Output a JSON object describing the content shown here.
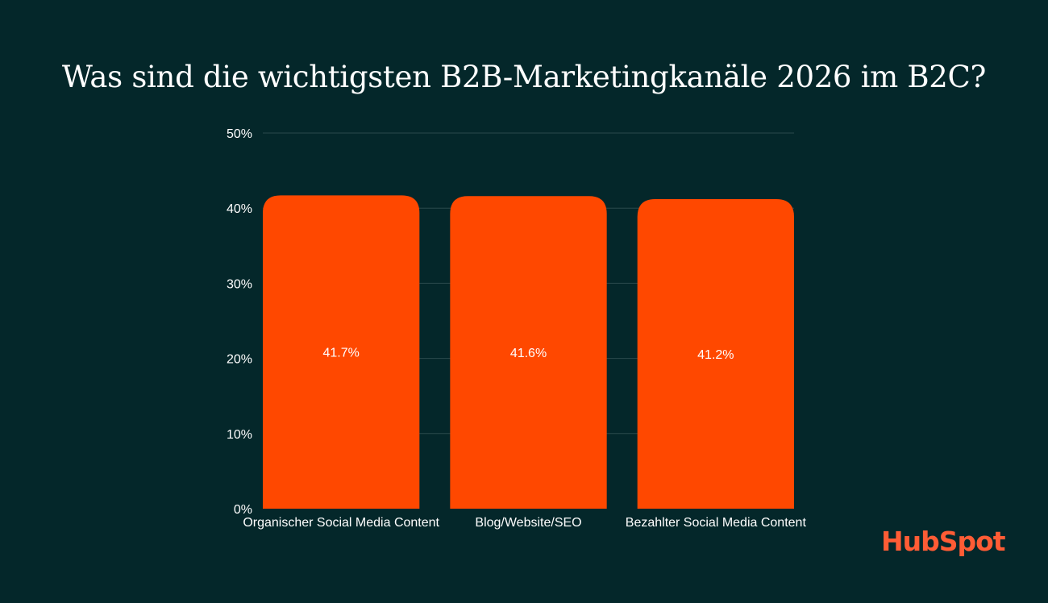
{
  "chart_data": {
    "type": "bar",
    "title": "Was sind die wichtigsten B2B-Marketingkanäle 2026 im B2C?",
    "categories": [
      "Organischer Social Media Content",
      "Blog/Website/SEO",
      "Bezahlter Social Media Content"
    ],
    "values": [
      41.7,
      41.6,
      41.2
    ],
    "data_labels": [
      "41.7%",
      "41.6%",
      "41.2%"
    ],
    "ylim": [
      0,
      50
    ],
    "yticks": [
      0,
      10,
      20,
      30,
      40,
      50
    ],
    "ytick_labels": [
      "0%",
      "10%",
      "20%",
      "30%",
      "40%",
      "50%"
    ],
    "grid": true,
    "legend": "none",
    "colors": {
      "background": "#04272A",
      "bar": "#FF4800",
      "grid": "#2A4A4C",
      "text": "#FFFFFF"
    }
  },
  "brand": {
    "logo_text": "HubSpot",
    "color": "#FF5C35"
  }
}
